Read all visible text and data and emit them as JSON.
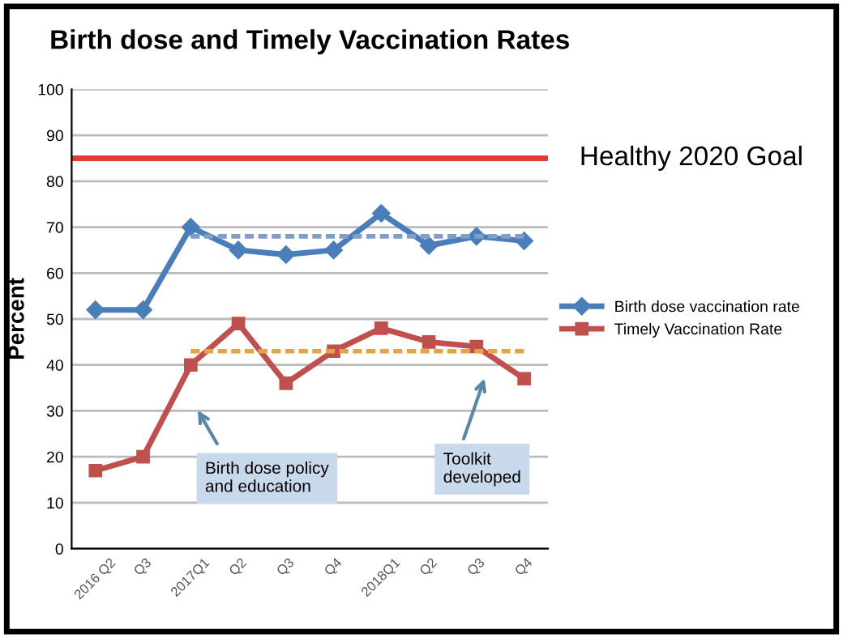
{
  "chart_data": {
    "type": "line",
    "title": "Birth dose and Timely Vaccination Rates",
    "ylabel": "Percent",
    "categories": [
      "2016 Q2",
      "Q3",
      "2017Q1",
      "Q2",
      "Q3",
      "Q4",
      "2018Q1",
      "Q2",
      "Q3",
      "Q4"
    ],
    "series": [
      {
        "name": "Birth dose vaccination rate",
        "color": "#4a7ebb",
        "marker": "diamond",
        "values": [
          52,
          52,
          70,
          65,
          64,
          65,
          73,
          66,
          68,
          67
        ]
      },
      {
        "name": "Timely Vaccination Rate",
        "color": "#c0504d",
        "marker": "square",
        "values": [
          17,
          20,
          40,
          49,
          36,
          43,
          48,
          45,
          44,
          37
        ]
      },
      {
        "color": "#7f9fc8",
        "line_style": "dashed",
        "marker": "none",
        "values": [
          null,
          null,
          68,
          68,
          68,
          68,
          68,
          68,
          68,
          68
        ]
      },
      {
        "color": "#e8a33c",
        "line_style": "dashed",
        "marker": "none",
        "values": [
          null,
          null,
          43,
          43,
          43,
          43,
          43,
          43,
          43,
          43
        ]
      }
    ],
    "ylim": [
      0,
      100
    ],
    "yticks": [
      0,
      10,
      20,
      30,
      40,
      50,
      60,
      70,
      80,
      90,
      100
    ],
    "grid": "y",
    "legend": "right",
    "ref_lines": [
      {
        "axis": "y",
        "value": 85,
        "label": "Healthy 2020 Goal",
        "color": "#e03c31",
        "line_style": "solid"
      }
    ],
    "annotations": [
      "Birth dose policy\nand education",
      "Toolkit\ndeveloped"
    ]
  }
}
